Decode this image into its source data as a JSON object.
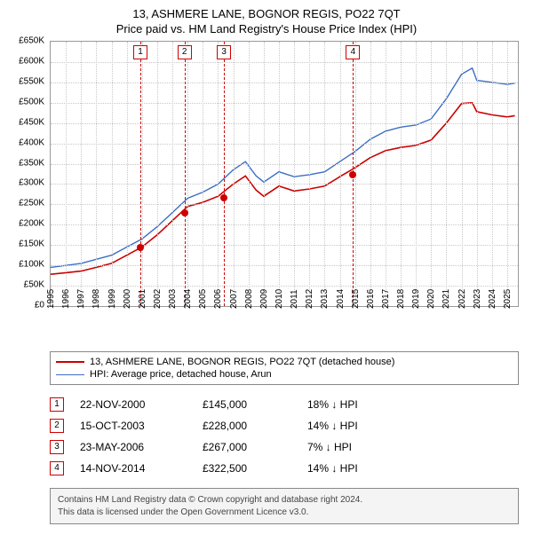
{
  "title_line1": "13, ASHMERE LANE, BOGNOR REGIS, PO22 7QT",
  "title_line2": "Price paid vs. HM Land Registry's House Price Index (HPI)",
  "chart": {
    "type": "line",
    "background_color": "#ffffff",
    "grid_color": "#c8c8c8",
    "border_color": "#999999",
    "x_years": [
      1995,
      1996,
      1997,
      1998,
      1999,
      2000,
      2001,
      2002,
      2003,
      2004,
      2005,
      2006,
      2007,
      2008,
      2009,
      2010,
      2011,
      2012,
      2013,
      2014,
      2015,
      2016,
      2017,
      2018,
      2019,
      2020,
      2021,
      2022,
      2023,
      2024,
      2025
    ],
    "x_min": 1995,
    "x_max": 2025.7,
    "y_min": 0,
    "y_max": 650000,
    "y_tick_step": 50000,
    "y_tick_labels": [
      "£0",
      "£50K",
      "£100K",
      "£150K",
      "£200K",
      "£250K",
      "£300K",
      "£350K",
      "£400K",
      "£450K",
      "£500K",
      "£550K",
      "£600K",
      "£650K"
    ],
    "series": [
      {
        "name": "hpi",
        "color": "#3b6fc4",
        "line_width": 1.4,
        "points": [
          [
            1995,
            95000
          ],
          [
            1996,
            100000
          ],
          [
            1997,
            105000
          ],
          [
            1998,
            115000
          ],
          [
            1999,
            125000
          ],
          [
            2000,
            145000
          ],
          [
            2001,
            165000
          ],
          [
            2002,
            195000
          ],
          [
            2003,
            230000
          ],
          [
            2004,
            265000
          ],
          [
            2005,
            280000
          ],
          [
            2006,
            300000
          ],
          [
            2007,
            335000
          ],
          [
            2007.8,
            355000
          ],
          [
            2008.5,
            320000
          ],
          [
            2009,
            305000
          ],
          [
            2010,
            330000
          ],
          [
            2011,
            318000
          ],
          [
            2012,
            323000
          ],
          [
            2013,
            330000
          ],
          [
            2014,
            355000
          ],
          [
            2015,
            380000
          ],
          [
            2016,
            410000
          ],
          [
            2017,
            430000
          ],
          [
            2018,
            440000
          ],
          [
            2019,
            445000
          ],
          [
            2020,
            460000
          ],
          [
            2021,
            510000
          ],
          [
            2022,
            570000
          ],
          [
            2022.7,
            585000
          ],
          [
            2023,
            555000
          ],
          [
            2024,
            550000
          ],
          [
            2025,
            545000
          ],
          [
            2025.5,
            548000
          ]
        ]
      },
      {
        "name": "property",
        "color": "#cc0000",
        "line_width": 1.6,
        "points": [
          [
            1995,
            78000
          ],
          [
            1996,
            82000
          ],
          [
            1997,
            86000
          ],
          [
            1998,
            95000
          ],
          [
            1999,
            105000
          ],
          [
            2000,
            125000
          ],
          [
            2001,
            145000
          ],
          [
            2002,
            175000
          ],
          [
            2003,
            210000
          ],
          [
            2004,
            245000
          ],
          [
            2005,
            255000
          ],
          [
            2006,
            270000
          ],
          [
            2007,
            300000
          ],
          [
            2007.8,
            320000
          ],
          [
            2008.5,
            285000
          ],
          [
            2009,
            270000
          ],
          [
            2010,
            295000
          ],
          [
            2011,
            283000
          ],
          [
            2012,
            288000
          ],
          [
            2013,
            295000
          ],
          [
            2014,
            318000
          ],
          [
            2015,
            340000
          ],
          [
            2016,
            365000
          ],
          [
            2017,
            382000
          ],
          [
            2018,
            390000
          ],
          [
            2019,
            395000
          ],
          [
            2020,
            408000
          ],
          [
            2021,
            450000
          ],
          [
            2022,
            498000
          ],
          [
            2022.7,
            500000
          ],
          [
            2023,
            478000
          ],
          [
            2024,
            470000
          ],
          [
            2025,
            465000
          ],
          [
            2025.5,
            468000
          ]
        ]
      }
    ],
    "markers_color": "#cc0000",
    "sale_markers": [
      {
        "n": "1",
        "x": 2000.9,
        "y": 145000
      },
      {
        "n": "2",
        "x": 2003.79,
        "y": 228000
      },
      {
        "n": "3",
        "x": 2006.39,
        "y": 267000
      },
      {
        "n": "4",
        "x": 2014.87,
        "y": 322500
      }
    ]
  },
  "legend": {
    "items": [
      {
        "color": "#cc0000",
        "width": 2,
        "label": "13, ASHMERE LANE, BOGNOR REGIS, PO22 7QT (detached house)"
      },
      {
        "color": "#3b6fc4",
        "width": 1.4,
        "label": "HPI: Average price, detached house, Arun"
      }
    ]
  },
  "sales": [
    {
      "n": "1",
      "date": "22-NOV-2000",
      "price": "£145,000",
      "pct": "18% ↓ HPI"
    },
    {
      "n": "2",
      "date": "15-OCT-2003",
      "price": "£228,000",
      "pct": "14% ↓ HPI"
    },
    {
      "n": "3",
      "date": "23-MAY-2006",
      "price": "£267,000",
      "pct": "7% ↓ HPI"
    },
    {
      "n": "4",
      "date": "14-NOV-2014",
      "price": "£322,500",
      "pct": "14% ↓ HPI"
    }
  ],
  "footer_line1": "Contains HM Land Registry data © Crown copyright and database right 2024.",
  "footer_line2": "This data is licensed under the Open Government Licence v3.0."
}
